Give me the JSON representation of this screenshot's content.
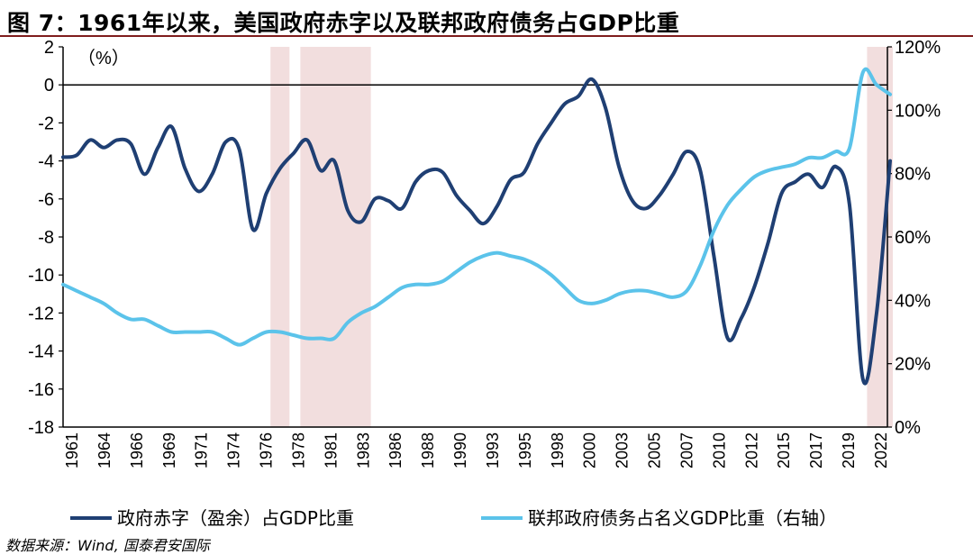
{
  "title": "图 7：1961年以来，美国政府赤字以及联邦政府债务占GDP比重",
  "source": "数据来源：Wind, 国泰君安国际",
  "colors": {
    "deficit": "#1f3f73",
    "debt": "#5bc3ea",
    "shade": "#f2dede",
    "title_rule": "#7f1d1d"
  },
  "chart_data": {
    "type": "line",
    "left_axis_unit_label": "（%）",
    "left_axis": {
      "min": -18,
      "max": 2,
      "step": 2,
      "tick_labels": [
        "2",
        "0",
        "-2",
        "-4",
        "-6",
        "-8",
        "-10",
        "-12",
        "-14",
        "-16",
        "-18"
      ]
    },
    "right_axis": {
      "min": 0,
      "max": 120,
      "step": 20,
      "tick_labels": [
        "120%",
        "100%",
        "80%",
        "60%",
        "40%",
        "20%",
        "0%"
      ]
    },
    "x_range": [
      1961,
      2022
    ],
    "x_tick_labels": [
      "1961",
      "1964",
      "1966",
      "1969",
      "1971",
      "1974",
      "1976",
      "1978",
      "1981",
      "1983",
      "1986",
      "1988",
      "1990",
      "1993",
      "1995",
      "1998",
      "2000",
      "2003",
      "2005",
      "2007",
      "2010",
      "2012",
      "2015",
      "2017",
      "2019",
      "2022"
    ],
    "shaded_periods": [
      [
        1976.3,
        1977.7
      ],
      [
        1978.5,
        1983.7
      ],
      [
        2020.3,
        2022.2
      ]
    ],
    "series": [
      {
        "name": "政府赤字（盈余）占GDP比重",
        "axis": "left",
        "x": [
          1961,
          1962,
          1963,
          1964,
          1965,
          1966,
          1967,
          1968,
          1969,
          1970,
          1971,
          1972,
          1973,
          1974,
          1975,
          1976,
          1977,
          1978,
          1979,
          1980,
          1981,
          1982,
          1983,
          1984,
          1985,
          1986,
          1987,
          1988,
          1989,
          1990,
          1991,
          1992,
          1993,
          1994,
          1995,
          1996,
          1997,
          1998,
          1999,
          2000,
          2001,
          2002,
          2003,
          2004,
          2005,
          2006,
          2007,
          2008,
          2009,
          2010,
          2011,
          2012,
          2013,
          2014,
          2015,
          2016,
          2017,
          2018,
          2019,
          2020,
          2021,
          2022
        ],
        "values": [
          -3.8,
          -3.7,
          -2.9,
          -3.3,
          -2.9,
          -3.1,
          -4.7,
          -3.3,
          -2.2,
          -4.4,
          -5.6,
          -4.7,
          -3.0,
          -3.4,
          -7.6,
          -5.7,
          -4.4,
          -3.6,
          -2.9,
          -4.5,
          -4.0,
          -6.6,
          -7.2,
          -6.0,
          -6.1,
          -6.5,
          -5.1,
          -4.5,
          -4.6,
          -5.8,
          -6.6,
          -7.3,
          -6.4,
          -5.0,
          -4.6,
          -3.1,
          -2.0,
          -1.0,
          -0.6,
          0.3,
          -1.2,
          -4.3,
          -6.1,
          -6.5,
          -5.8,
          -4.7,
          -3.5,
          -4.5,
          -9.0,
          -13.3,
          -12.3,
          -10.6,
          -8.3,
          -5.7,
          -5.1,
          -4.7,
          -5.4,
          -4.3,
          -6.3,
          -15.5,
          -12.0,
          -4.0
        ]
      },
      {
        "name": "联邦政府债务占名义GDP比重（右轴）",
        "axis": "right",
        "x": [
          1961,
          1962,
          1963,
          1964,
          1965,
          1966,
          1967,
          1968,
          1969,
          1970,
          1971,
          1972,
          1973,
          1974,
          1975,
          1976,
          1977,
          1978,
          1979,
          1980,
          1981,
          1982,
          1983,
          1984,
          1985,
          1986,
          1987,
          1988,
          1989,
          1990,
          1991,
          1992,
          1993,
          1994,
          1995,
          1996,
          1997,
          1998,
          1999,
          2000,
          2001,
          2002,
          2003,
          2004,
          2005,
          2006,
          2007,
          2008,
          2009,
          2010,
          2011,
          2012,
          2013,
          2014,
          2015,
          2016,
          2017,
          2018,
          2019,
          2020,
          2021,
          2022
        ],
        "values": [
          45,
          43,
          41,
          39,
          36,
          34,
          34,
          32,
          30,
          30,
          30,
          30,
          28,
          26,
          28,
          30,
          30,
          29,
          28,
          28,
          28,
          33,
          36,
          38,
          41,
          44,
          45,
          45,
          46,
          49,
          52,
          54,
          55,
          54,
          53,
          51,
          48,
          44,
          40,
          39,
          40,
          42,
          43,
          43,
          42,
          41,
          43,
          51,
          62,
          70,
          75,
          79,
          81,
          82,
          83,
          85,
          85,
          87,
          88,
          112,
          108,
          105
        ]
      }
    ]
  }
}
